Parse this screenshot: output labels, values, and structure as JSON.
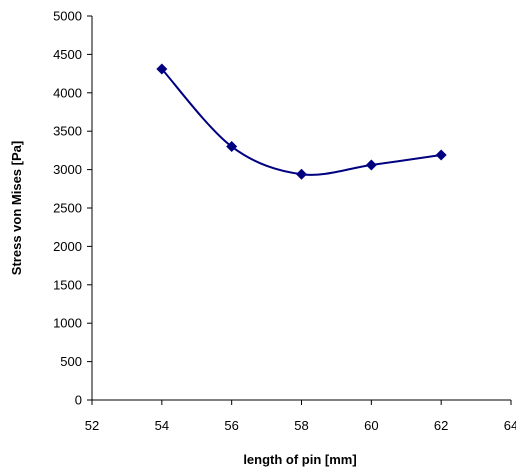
{
  "chart_data": {
    "type": "scatter",
    "title": "",
    "xlabel": "length of pin [mm]",
    "ylabel": "Stress von Mises [Pa]",
    "xlim": [
      52,
      64
    ],
    "ylim": [
      0,
      5000
    ],
    "xticks": [
      52,
      54,
      56,
      58,
      60,
      62,
      64
    ],
    "yticks": [
      0,
      500,
      1000,
      1500,
      2000,
      2500,
      3000,
      3500,
      4000,
      4500,
      5000
    ],
    "grid": false,
    "legend": "none",
    "line": "smoothed",
    "marker": "diamond",
    "series": [
      {
        "color": "#000080",
        "x": [
          54,
          56,
          58,
          60,
          62
        ],
        "y": [
          4310,
          3300,
          2940,
          3060,
          3190
        ]
      }
    ]
  }
}
